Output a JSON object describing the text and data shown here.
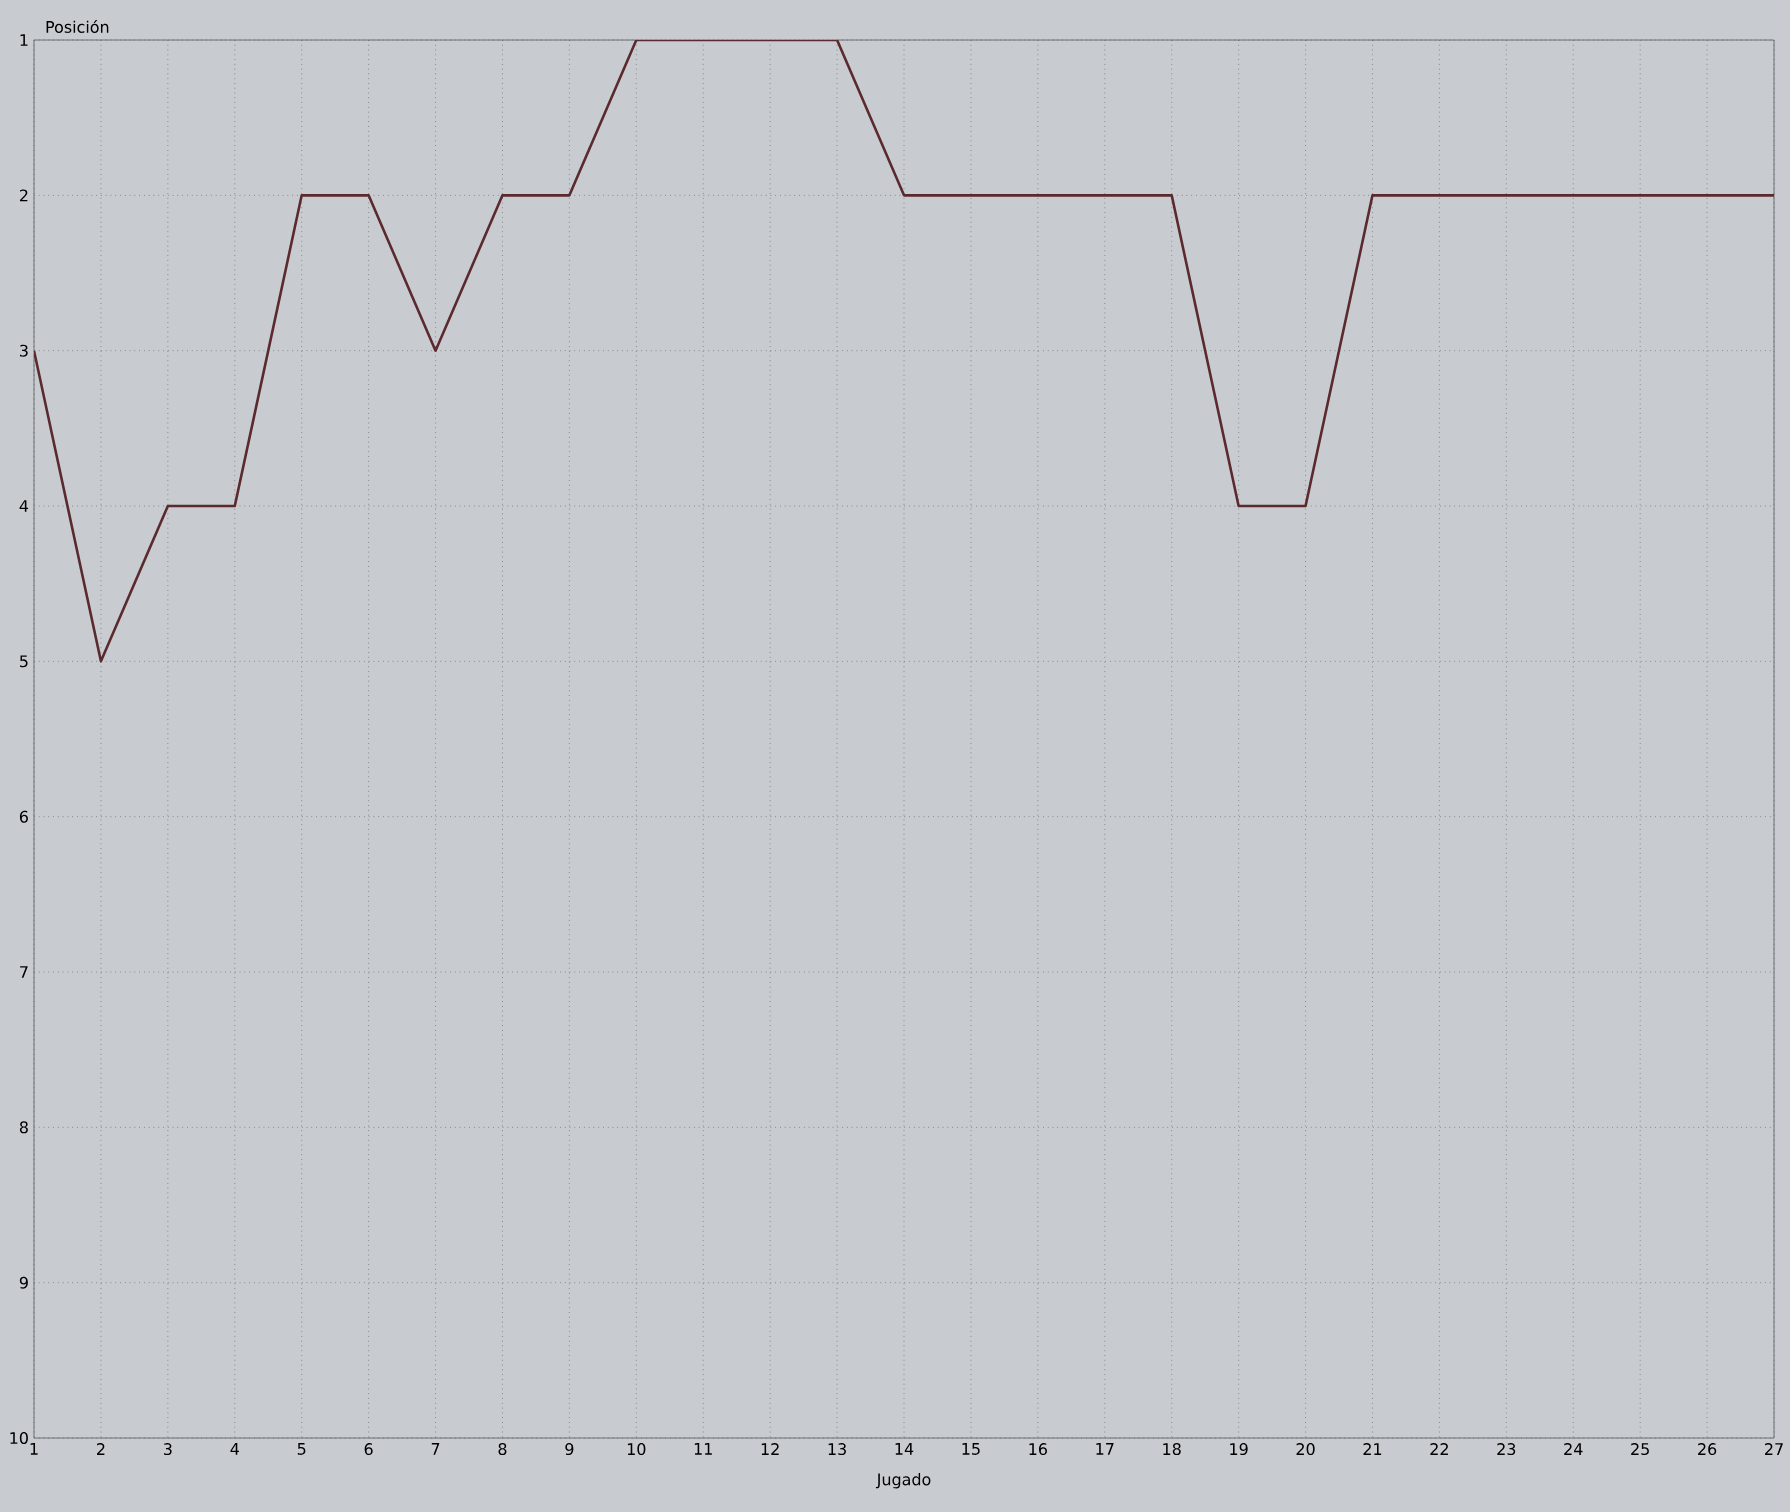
{
  "chart_data": {
    "type": "line",
    "xlabel": "Jugado",
    "ylabel": "Posición",
    "x": [
      1,
      2,
      3,
      4,
      5,
      6,
      7,
      8,
      9,
      10,
      11,
      12,
      13,
      14,
      15,
      16,
      17,
      18,
      19,
      20,
      21,
      22,
      23,
      24,
      25,
      26,
      27
    ],
    "series": [
      {
        "color": "#5a2a2e",
        "values": [
          3,
          5,
          4,
          4,
          2,
          2,
          3,
          2,
          2,
          1,
          1,
          1,
          1,
          2,
          2,
          2,
          2,
          2,
          4,
          4,
          2,
          2,
          2,
          2,
          2,
          2,
          2
        ]
      }
    ],
    "xlim": [
      1,
      27
    ],
    "xticks": [
      1,
      2,
      3,
      4,
      5,
      6,
      7,
      8,
      9,
      10,
      11,
      12,
      13,
      14,
      15,
      16,
      17,
      18,
      19,
      20,
      21,
      22,
      23,
      24,
      25,
      26,
      27
    ],
    "ylim": [
      10,
      1
    ],
    "yticks": [
      1,
      2,
      3,
      4,
      5,
      6,
      7,
      8,
      9,
      10
    ],
    "grid": true,
    "marker": "none",
    "line_style": "solid"
  }
}
